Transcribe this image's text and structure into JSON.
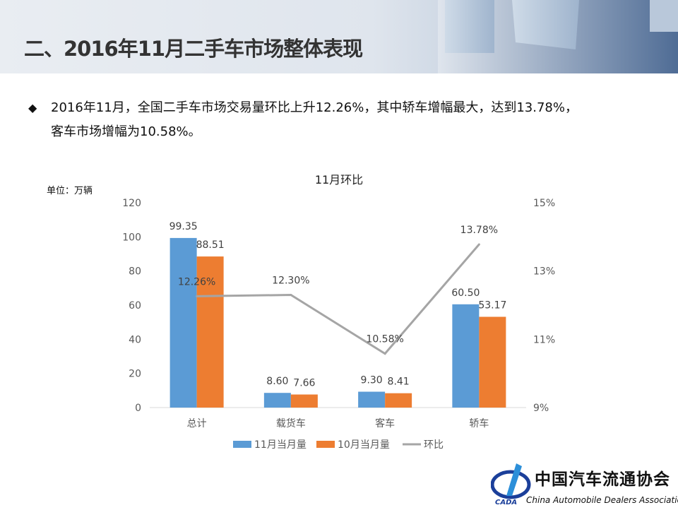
{
  "header": {
    "title": "二、2016年11月二手车市场整体表现"
  },
  "bullet": {
    "icon": "diamond-bullet",
    "line1": "2016年11月，全国二手车市场交易量环比上升12.26%，其中轿车增幅最大，达到13.78%，",
    "line2": "客车市场增幅为10.58%。"
  },
  "chart_data": {
    "type": "bar+line",
    "title": "11月环比",
    "unit_label": "单位：万辆",
    "categories": [
      "总计",
      "载货车",
      "客车",
      "轿车"
    ],
    "series": [
      {
        "name": "11月当月量",
        "type": "bar",
        "axis": "left",
        "color": "#5b9bd5",
        "values": [
          99.35,
          8.6,
          9.3,
          60.5
        ],
        "labels": [
          "99.35",
          "8.60",
          "9.30",
          "60.50"
        ]
      },
      {
        "name": "10月当月量",
        "type": "bar",
        "axis": "left",
        "color": "#ed7d31",
        "values": [
          88.51,
          7.66,
          8.41,
          53.17
        ],
        "labels": [
          "88.51",
          "7.66",
          "8.41",
          "53.17"
        ]
      },
      {
        "name": "环比",
        "type": "line",
        "axis": "right",
        "color": "#a5a5a5",
        "values": [
          12.26,
          12.3,
          10.58,
          13.78
        ],
        "labels": [
          "12.26%",
          "12.30%",
          "10.58%",
          "13.78%"
        ]
      }
    ],
    "ylim": [
      0,
      120
    ],
    "yticks": [
      "0",
      "20",
      "40",
      "60",
      "80",
      "100",
      "120"
    ],
    "y2lim": [
      9,
      15
    ],
    "y2ticks": [
      "9%",
      "11%",
      "13%",
      "15%"
    ],
    "grid": false,
    "legend_position": "bottom"
  },
  "footer": {
    "logo_cn": "中国汽车流通协会",
    "logo_en": "China Automobile Dealers Association",
    "logo_abbr": "CADA"
  }
}
